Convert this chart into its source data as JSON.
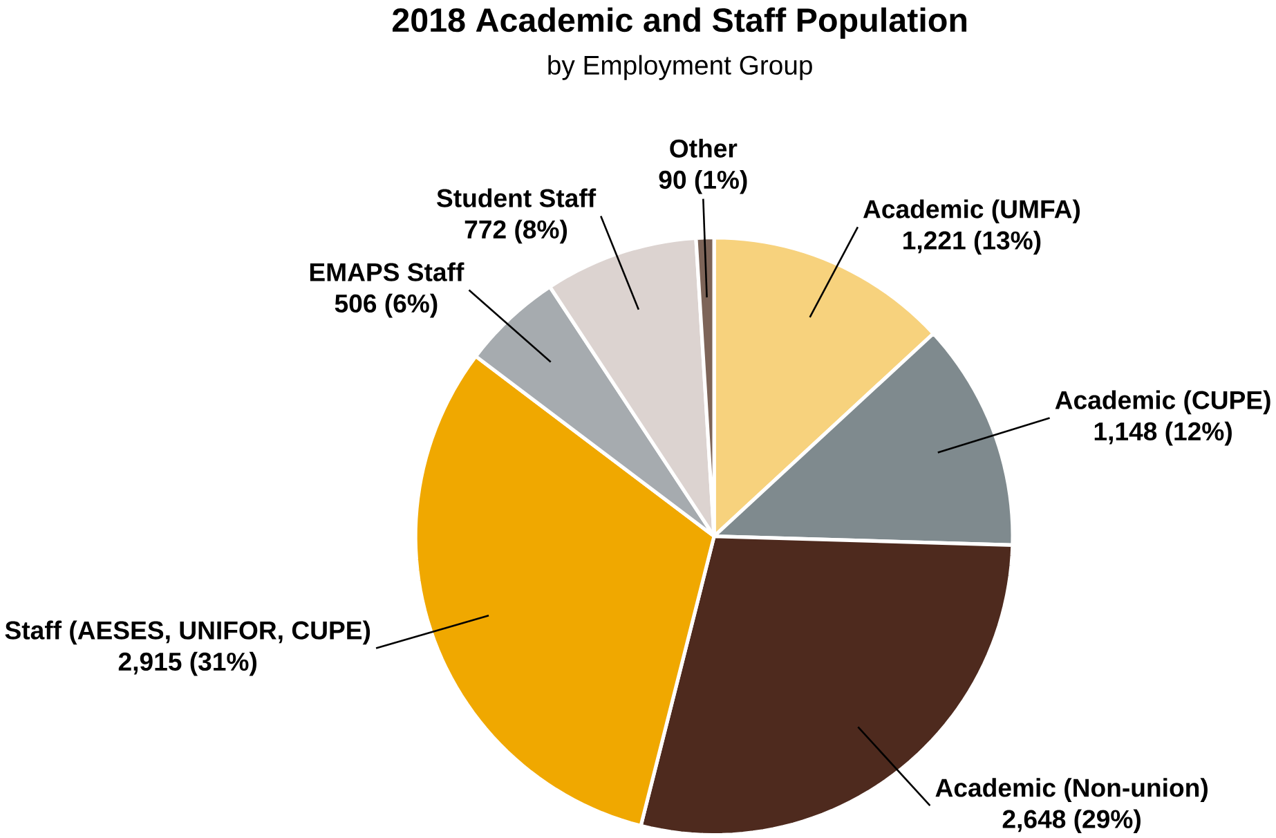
{
  "chart_data": {
    "type": "pie",
    "title": "2018 Academic and Staff Population",
    "subtitle": "by Employment Group",
    "categories": [
      "Academic (UMFA)",
      "Academic (CUPE)",
      "Academic (Non-union)",
      "Staff (AESES, UNIFOR, CUPE)",
      "EMAPS Staff",
      "Student Staff",
      "Other"
    ],
    "values": [
      1221,
      1148,
      2648,
      2915,
      506,
      772,
      90
    ],
    "value_labels": [
      "1,221 (13%)",
      "1,148 (12%)",
      "2,648 (29%)",
      "2,915 (31%)",
      "506 (6%)",
      "772 (8%)",
      "90 (1%)"
    ],
    "colors": [
      "#f7d27d",
      "#7f8a8e",
      "#4e2a1e",
      "#f0a800",
      "#a6abaf",
      "#dcd3d0",
      "#7d6458"
    ]
  }
}
